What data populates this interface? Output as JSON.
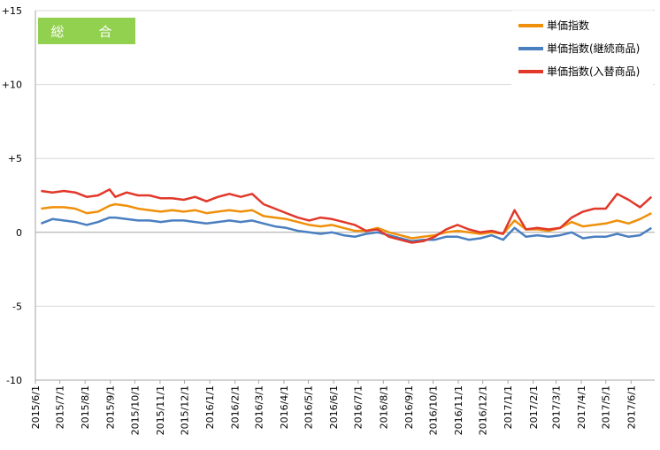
{
  "chart_data": {
    "type": "line",
    "title": "総　合",
    "yticks": [
      "+15",
      "+10",
      "+5",
      "0",
      "-5",
      "-10"
    ],
    "ylim": [
      -10,
      15
    ],
    "x_tick_labels": [
      "2015/6/1",
      "2015/7/1",
      "2015/8/1",
      "2015/9/1",
      "2015/10/1",
      "2015/11/1",
      "2015/12/1",
      "2016/1/1",
      "2016/2/1",
      "2016/3/1",
      "2016/4/1",
      "2016/5/1",
      "2016/6/1",
      "2016/7/1",
      "2016/8/1",
      "2016/9/1",
      "2016/10/1",
      "2016/11/1",
      "2016/12/1",
      "2017/1/1",
      "2017/2/1",
      "2017/3/1",
      "2017/4/1",
      "2017/5/1",
      "2017/6/1"
    ],
    "x_start": "2015/6/1",
    "x_end": "2017/6/30",
    "grid": true,
    "legend_position": "top-right",
    "series": [
      {
        "name": "単価指数",
        "color": "#f0900a",
        "points": [
          [
            "2015/6/8",
            1.6
          ],
          [
            "2015/6/22",
            1.7
          ],
          [
            "2015/7/6",
            1.7
          ],
          [
            "2015/7/20",
            1.6
          ],
          [
            "2015/8/3",
            1.3
          ],
          [
            "2015/8/17",
            1.4
          ],
          [
            "2015/8/31",
            1.8
          ],
          [
            "2015/9/7",
            1.9
          ],
          [
            "2015/9/21",
            1.8
          ],
          [
            "2015/10/5",
            1.6
          ],
          [
            "2015/10/19",
            1.5
          ],
          [
            "2015/11/2",
            1.4
          ],
          [
            "2015/11/16",
            1.5
          ],
          [
            "2015/11/30",
            1.4
          ],
          [
            "2015/12/14",
            1.5
          ],
          [
            "2015/12/28",
            1.3
          ],
          [
            "2016/1/11",
            1.4
          ],
          [
            "2016/1/25",
            1.5
          ],
          [
            "2016/2/8",
            1.4
          ],
          [
            "2016/2/22",
            1.5
          ],
          [
            "2016/3/7",
            1.1
          ],
          [
            "2016/3/21",
            1.0
          ],
          [
            "2016/4/4",
            0.9
          ],
          [
            "2016/4/18",
            0.7
          ],
          [
            "2016/5/2",
            0.5
          ],
          [
            "2016/5/16",
            0.4
          ],
          [
            "2016/5/30",
            0.5
          ],
          [
            "2016/6/13",
            0.3
          ],
          [
            "2016/6/27",
            0.1
          ],
          [
            "2016/7/11",
            0.1
          ],
          [
            "2016/7/25",
            0.3
          ],
          [
            "2016/8/8",
            0.0
          ],
          [
            "2016/8/22",
            -0.2
          ],
          [
            "2016/9/5",
            -0.4
          ],
          [
            "2016/9/19",
            -0.3
          ],
          [
            "2016/10/3",
            -0.2
          ],
          [
            "2016/10/17",
            0.0
          ],
          [
            "2016/10/31",
            0.1
          ],
          [
            "2016/11/14",
            0.0
          ],
          [
            "2016/11/28",
            -0.1
          ],
          [
            "2016/12/12",
            0.0
          ],
          [
            "2016/12/26",
            -0.1
          ],
          [
            "2017/1/9",
            0.8
          ],
          [
            "2017/1/23",
            0.2
          ],
          [
            "2017/2/6",
            0.2
          ],
          [
            "2017/2/20",
            0.1
          ],
          [
            "2017/3/6",
            0.3
          ],
          [
            "2017/3/20",
            0.7
          ],
          [
            "2017/4/3",
            0.4
          ],
          [
            "2017/4/17",
            0.5
          ],
          [
            "2017/5/1",
            0.6
          ],
          [
            "2017/5/15",
            0.8
          ],
          [
            "2017/5/29",
            0.6
          ],
          [
            "2017/6/12",
            0.9
          ],
          [
            "2017/6/26",
            1.3
          ]
        ]
      },
      {
        "name": "単価指数(継続商品)",
        "color": "#4a7fc0",
        "points": [
          [
            "2015/6/8",
            0.6
          ],
          [
            "2015/6/22",
            0.9
          ],
          [
            "2015/7/6",
            0.8
          ],
          [
            "2015/7/20",
            0.7
          ],
          [
            "2015/8/3",
            0.5
          ],
          [
            "2015/8/17",
            0.7
          ],
          [
            "2015/8/31",
            1.0
          ],
          [
            "2015/9/7",
            1.0
          ],
          [
            "2015/9/21",
            0.9
          ],
          [
            "2015/10/5",
            0.8
          ],
          [
            "2015/10/19",
            0.8
          ],
          [
            "2015/11/2",
            0.7
          ],
          [
            "2015/11/16",
            0.8
          ],
          [
            "2015/11/30",
            0.8
          ],
          [
            "2015/12/14",
            0.7
          ],
          [
            "2015/12/28",
            0.6
          ],
          [
            "2016/1/11",
            0.7
          ],
          [
            "2016/1/25",
            0.8
          ],
          [
            "2016/2/8",
            0.7
          ],
          [
            "2016/2/22",
            0.8
          ],
          [
            "2016/3/7",
            0.6
          ],
          [
            "2016/3/21",
            0.4
          ],
          [
            "2016/4/4",
            0.3
          ],
          [
            "2016/4/18",
            0.1
          ],
          [
            "2016/5/2",
            0.0
          ],
          [
            "2016/5/16",
            -0.1
          ],
          [
            "2016/5/30",
            0.0
          ],
          [
            "2016/6/13",
            -0.2
          ],
          [
            "2016/6/27",
            -0.3
          ],
          [
            "2016/7/11",
            -0.1
          ],
          [
            "2016/7/25",
            0.0
          ],
          [
            "2016/8/8",
            -0.2
          ],
          [
            "2016/8/22",
            -0.4
          ],
          [
            "2016/9/5",
            -0.6
          ],
          [
            "2016/9/19",
            -0.5
          ],
          [
            "2016/10/3",
            -0.5
          ],
          [
            "2016/10/17",
            -0.3
          ],
          [
            "2016/10/31",
            -0.3
          ],
          [
            "2016/11/14",
            -0.5
          ],
          [
            "2016/11/28",
            -0.4
          ],
          [
            "2016/12/12",
            -0.2
          ],
          [
            "2016/12/26",
            -0.5
          ],
          [
            "2017/1/9",
            0.3
          ],
          [
            "2017/1/23",
            -0.3
          ],
          [
            "2017/2/6",
            -0.2
          ],
          [
            "2017/2/20",
            -0.3
          ],
          [
            "2017/3/6",
            -0.2
          ],
          [
            "2017/3/20",
            0.0
          ],
          [
            "2017/4/3",
            -0.4
          ],
          [
            "2017/4/17",
            -0.3
          ],
          [
            "2017/5/1",
            -0.3
          ],
          [
            "2017/5/15",
            -0.1
          ],
          [
            "2017/5/29",
            -0.3
          ],
          [
            "2017/6/12",
            -0.2
          ],
          [
            "2017/6/26",
            0.3
          ]
        ]
      },
      {
        "name": "単価指数(入替商品)",
        "color": "#e2382a",
        "points": [
          [
            "2015/6/8",
            2.8
          ],
          [
            "2015/6/22",
            2.7
          ],
          [
            "2015/7/6",
            2.8
          ],
          [
            "2015/7/20",
            2.7
          ],
          [
            "2015/8/3",
            2.4
          ],
          [
            "2015/8/17",
            2.5
          ],
          [
            "2015/8/31",
            2.9
          ],
          [
            "2015/9/7",
            2.4
          ],
          [
            "2015/9/21",
            2.7
          ],
          [
            "2015/10/5",
            2.5
          ],
          [
            "2015/10/19",
            2.5
          ],
          [
            "2015/11/2",
            2.3
          ],
          [
            "2015/11/16",
            2.3
          ],
          [
            "2015/11/30",
            2.2
          ],
          [
            "2015/12/14",
            2.4
          ],
          [
            "2015/12/28",
            2.1
          ],
          [
            "2016/1/11",
            2.4
          ],
          [
            "2016/1/25",
            2.6
          ],
          [
            "2016/2/8",
            2.4
          ],
          [
            "2016/2/22",
            2.6
          ],
          [
            "2016/3/7",
            1.9
          ],
          [
            "2016/3/21",
            1.6
          ],
          [
            "2016/4/4",
            1.3
          ],
          [
            "2016/4/18",
            1.0
          ],
          [
            "2016/5/2",
            0.8
          ],
          [
            "2016/5/16",
            1.0
          ],
          [
            "2016/5/30",
            0.9
          ],
          [
            "2016/6/13",
            0.7
          ],
          [
            "2016/6/27",
            0.5
          ],
          [
            "2016/7/11",
            0.1
          ],
          [
            "2016/7/25",
            0.2
          ],
          [
            "2016/8/8",
            -0.3
          ],
          [
            "2016/8/22",
            -0.5
          ],
          [
            "2016/9/5",
            -0.7
          ],
          [
            "2016/9/19",
            -0.6
          ],
          [
            "2016/10/3",
            -0.3
          ],
          [
            "2016/10/17",
            0.2
          ],
          [
            "2016/10/31",
            0.5
          ],
          [
            "2016/11/14",
            0.2
          ],
          [
            "2016/11/28",
            0.0
          ],
          [
            "2016/12/12",
            0.1
          ],
          [
            "2016/12/26",
            -0.1
          ],
          [
            "2017/1/9",
            1.5
          ],
          [
            "2017/1/23",
            0.2
          ],
          [
            "2017/2/6",
            0.3
          ],
          [
            "2017/2/20",
            0.2
          ],
          [
            "2017/3/6",
            0.3
          ],
          [
            "2017/3/20",
            1.0
          ],
          [
            "2017/4/3",
            1.4
          ],
          [
            "2017/4/17",
            1.6
          ],
          [
            "2017/5/1",
            1.6
          ],
          [
            "2017/5/15",
            2.6
          ],
          [
            "2017/5/29",
            2.2
          ],
          [
            "2017/6/12",
            1.7
          ],
          [
            "2017/6/26",
            2.4
          ]
        ]
      }
    ]
  }
}
